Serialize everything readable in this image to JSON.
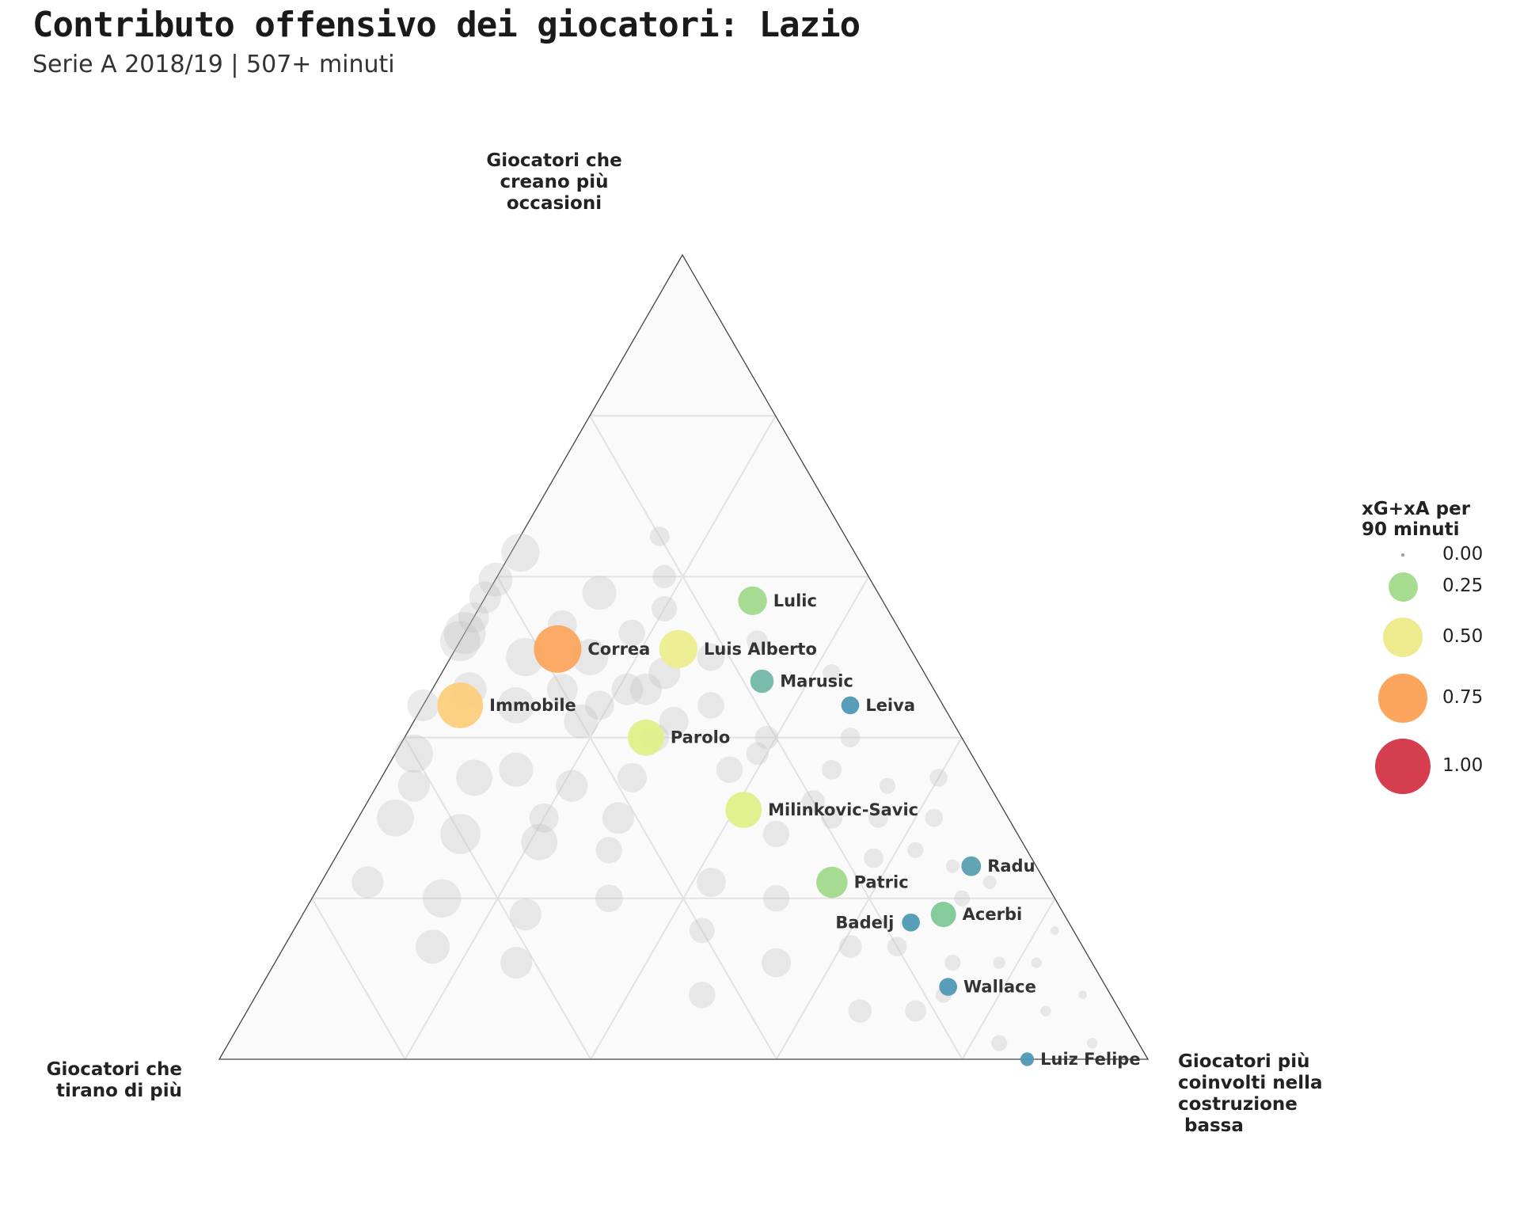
{
  "chart_data": {
    "type": "scatter",
    "subtype": "ternary",
    "title": "Contributo offensivo dei giocatori: Lazio",
    "subtitle": "Serie A 2018/19 | 507+ minuti",
    "axes": {
      "top": "Giocatori che creano più occasioni",
      "top_lines": [
        "Giocatori che",
        "creano più",
        "occasioni"
      ],
      "left": "Giocatori che tirano di più",
      "left_lines": [
        "Giocatori che",
        "tirano di più"
      ],
      "right": "Giocatori più coinvolti nella costruzione bassa",
      "right_lines": [
        "Giocatori più",
        "coinvolti nella",
        "costruzione",
        " bassa"
      ]
    },
    "component_order": [
      "tiro",
      "creazione",
      "costruzione"
    ],
    "size_variable": "xG+xA per 90 minuti",
    "legend": {
      "title_lines": [
        "xG+xA per",
        "90 minuti"
      ],
      "entries": [
        {
          "label": "0.00",
          "value": 0.0,
          "color": "#9aa0a6"
        },
        {
          "label": "0.25",
          "value": 0.25,
          "color": "#a6dc8f"
        },
        {
          "label": "0.50",
          "value": 0.5,
          "color": "#eeeb8e"
        },
        {
          "label": "0.75",
          "value": 0.75,
          "color": "#fca55f"
        },
        {
          "label": "1.00",
          "value": 1.0,
          "color": "#d53e4f"
        }
      ]
    },
    "highlighted": [
      {
        "name": "Lulic",
        "shooting": 0.14,
        "creating": 0.57,
        "buildup": 0.29,
        "xgxa": 0.24,
        "color": "#a3d98c"
      },
      {
        "name": "Luis Alberto",
        "shooting": 0.25,
        "creating": 0.51,
        "buildup": 0.24,
        "xgxa": 0.45,
        "color": "#eded8f"
      },
      {
        "name": "Correa",
        "shooting": 0.38,
        "creating": 0.51,
        "buildup": 0.11,
        "xgxa": 0.72,
        "color": "#fca65f"
      },
      {
        "name": "Marusic",
        "shooting": 0.18,
        "creating": 0.47,
        "buildup": 0.35,
        "xgxa": 0.15,
        "color": "#72b8a4"
      },
      {
        "name": "Leiva",
        "shooting": 0.1,
        "creating": 0.44,
        "buildup": 0.46,
        "xgxa": 0.08,
        "color": "#4f99b5"
      },
      {
        "name": "Immobile",
        "shooting": 0.52,
        "creating": 0.44,
        "buildup": 0.04,
        "xgxa": 0.66,
        "color": "#fdcf7c"
      },
      {
        "name": "Parolo",
        "shooting": 0.34,
        "creating": 0.4,
        "buildup": 0.26,
        "xgxa": 0.4,
        "color": "#dff08a"
      },
      {
        "name": "Milinkovic-Savic",
        "shooting": 0.28,
        "creating": 0.31,
        "buildup": 0.41,
        "xgxa": 0.4,
        "color": "#dff08a"
      },
      {
        "name": "Radu",
        "shooting": 0.07,
        "creating": 0.24,
        "buildup": 0.69,
        "xgxa": 0.1,
        "color": "#58a0b0"
      },
      {
        "name": "Patric",
        "shooting": 0.23,
        "creating": 0.22,
        "buildup": 0.55,
        "xgxa": 0.29,
        "color": "#a3d98c"
      },
      {
        "name": "Acerbi",
        "shooting": 0.13,
        "creating": 0.18,
        "buildup": 0.69,
        "xgxa": 0.18,
        "color": "#80c895"
      },
      {
        "name": "Badelj",
        "shooting": 0.17,
        "creating": 0.17,
        "buildup": 0.66,
        "xgxa": 0.08,
        "color": "#4f99b5"
      },
      {
        "name": "Wallace",
        "shooting": 0.17,
        "creating": 0.09,
        "buildup": 0.74,
        "xgxa": 0.08,
        "color": "#4f99b5"
      },
      {
        "name": "Luiz Felipe",
        "shooting": 0.13,
        "creating": 0.0,
        "buildup": 0.87,
        "xgxa": 0.04,
        "color": "#4f99b5"
      }
    ],
    "background_players": [
      {
        "shooting": 0.55,
        "creating": 0.62,
        "buildup": 0.0,
        "xgxa": 0.55
      },
      {
        "shooting": 0.44,
        "creating": 0.65,
        "buildup": 0.0,
        "xgxa": 0.35
      },
      {
        "shooting": 0.36,
        "creating": 0.63,
        "buildup": 0.01,
        "xgxa": 0.45
      },
      {
        "shooting": 0.43,
        "creating": 0.58,
        "buildup": 0.0,
        "xgxa": 0.3
      },
      {
        "shooting": 0.3,
        "creating": 0.58,
        "buildup": 0.12,
        "xgxa": 0.35
      },
      {
        "shooting": 0.22,
        "creating": 0.6,
        "buildup": 0.18,
        "xgxa": 0.15
      },
      {
        "shooting": 0.2,
        "creating": 0.65,
        "buildup": 0.15,
        "xgxa": 0.1
      },
      {
        "shooting": 0.48,
        "creating": 0.52,
        "buildup": 0.0,
        "xgxa": 0.5
      },
      {
        "shooting": 0.42,
        "creating": 0.5,
        "buildup": 0.08,
        "xgxa": 0.45
      },
      {
        "shooting": 0.35,
        "creating": 0.5,
        "buildup": 0.15,
        "xgxa": 0.4
      },
      {
        "shooting": 0.28,
        "creating": 0.48,
        "buildup": 0.24,
        "xgxa": 0.3
      },
      {
        "shooting": 0.22,
        "creating": 0.5,
        "buildup": 0.28,
        "xgxa": 0.22
      },
      {
        "shooting": 0.46,
        "creating": 0.44,
        "buildup": 0.1,
        "xgxa": 0.4
      },
      {
        "shooting": 0.4,
        "creating": 0.42,
        "buildup": 0.18,
        "xgxa": 0.35
      },
      {
        "shooting": 0.37,
        "creating": 0.44,
        "buildup": 0.19,
        "xgxa": 0.25
      },
      {
        "shooting": 0.33,
        "creating": 0.46,
        "buildup": 0.21,
        "xgxa": 0.3
      },
      {
        "shooting": 0.3,
        "creating": 0.42,
        "buildup": 0.28,
        "xgxa": 0.25
      },
      {
        "shooting": 0.25,
        "creating": 0.44,
        "buildup": 0.31,
        "xgxa": 0.2
      },
      {
        "shooting": 0.21,
        "creating": 0.4,
        "buildup": 0.39,
        "xgxa": 0.15
      },
      {
        "shooting": 0.6,
        "creating": 0.38,
        "buildup": 0.02,
        "xgxa": 0.45
      },
      {
        "shooting": 0.55,
        "creating": 0.35,
        "buildup": 0.1,
        "xgxa": 0.4
      },
      {
        "shooting": 0.5,
        "creating": 0.36,
        "buildup": 0.14,
        "xgxa": 0.35
      },
      {
        "shooting": 0.45,
        "creating": 0.34,
        "buildup": 0.21,
        "xgxa": 0.3
      },
      {
        "shooting": 0.38,
        "creating": 0.35,
        "buildup": 0.27,
        "xgxa": 0.25
      },
      {
        "shooting": 0.66,
        "creating": 0.3,
        "buildup": 0.04,
        "xgxa": 0.42
      },
      {
        "shooting": 0.6,
        "creating": 0.28,
        "buildup": 0.12,
        "xgxa": 0.5
      },
      {
        "shooting": 0.52,
        "creating": 0.27,
        "buildup": 0.21,
        "xgxa": 0.4
      },
      {
        "shooting": 0.45,
        "creating": 0.26,
        "buildup": 0.29,
        "xgxa": 0.2
      },
      {
        "shooting": 0.73,
        "creating": 0.22,
        "buildup": 0.05,
        "xgxa": 0.3
      },
      {
        "shooting": 0.66,
        "creating": 0.2,
        "buildup": 0.14,
        "xgxa": 0.45
      },
      {
        "shooting": 0.58,
        "creating": 0.18,
        "buildup": 0.24,
        "xgxa": 0.3
      },
      {
        "shooting": 0.62,
        "creating": 0.12,
        "buildup": 0.26,
        "xgxa": 0.3
      },
      {
        "shooting": 0.7,
        "creating": 0.14,
        "buildup": 0.16,
        "xgxa": 0.35
      },
      {
        "shooting": 0.36,
        "creating": 0.22,
        "buildup": 0.42,
        "xgxa": 0.25
      },
      {
        "shooting": 0.3,
        "creating": 0.2,
        "buildup": 0.5,
        "xgxa": 0.2
      },
      {
        "shooting": 0.34,
        "creating": 0.12,
        "buildup": 0.54,
        "xgxa": 0.25
      },
      {
        "shooting": 0.26,
        "creating": 0.28,
        "buildup": 0.46,
        "xgxa": 0.2
      },
      {
        "shooting": 0.2,
        "creating": 0.32,
        "buildup": 0.48,
        "xgxa": 0.15
      },
      {
        "shooting": 0.16,
        "creating": 0.36,
        "buildup": 0.48,
        "xgxa": 0.1
      },
      {
        "shooting": 0.19,
        "creating": 0.3,
        "buildup": 0.51,
        "xgxa": 0.12
      },
      {
        "shooting": 0.14,
        "creating": 0.3,
        "buildup": 0.56,
        "xgxa": 0.1
      },
      {
        "shooting": 0.12,
        "creating": 0.26,
        "buildup": 0.62,
        "xgxa": 0.06
      },
      {
        "shooting": 0.17,
        "creating": 0.25,
        "buildup": 0.58,
        "xgxa": 0.1
      },
      {
        "shooting": 0.08,
        "creating": 0.3,
        "buildup": 0.62,
        "xgxa": 0.08
      },
      {
        "shooting": 0.05,
        "creating": 0.35,
        "buildup": 0.6,
        "xgxa": 0.08
      },
      {
        "shooting": 0.06,
        "creating": 0.22,
        "buildup": 0.72,
        "xgxa": 0.04
      },
      {
        "shooting": 0.1,
        "creating": 0.2,
        "buildup": 0.7,
        "xgxa": 0.06
      },
      {
        "shooting": 0.2,
        "creating": 0.14,
        "buildup": 0.66,
        "xgxa": 0.1
      },
      {
        "shooting": 0.15,
        "creating": 0.12,
        "buildup": 0.73,
        "xgxa": 0.06
      },
      {
        "shooting": 0.1,
        "creating": 0.12,
        "buildup": 0.78,
        "xgxa": 0.03
      },
      {
        "shooting": 0.06,
        "creating": 0.12,
        "buildup": 0.82,
        "xgxa": 0.02
      },
      {
        "shooting": 0.22,
        "creating": 0.06,
        "buildup": 0.72,
        "xgxa": 0.12
      },
      {
        "shooting": 0.28,
        "creating": 0.06,
        "buildup": 0.66,
        "xgxa": 0.15
      },
      {
        "shooting": 0.15,
        "creating": 0.02,
        "buildup": 0.83,
        "xgxa": 0.06
      },
      {
        "shooting": 0.05,
        "creating": 0.02,
        "buildup": 0.93,
        "xgxa": 0.02
      },
      {
        "shooting": 0.03,
        "creating": 0.08,
        "buildup": 0.89,
        "xgxa": 0.01
      },
      {
        "shooting": 0.02,
        "creating": 0.16,
        "buildup": 0.82,
        "xgxa": 0.01
      },
      {
        "shooting": 0.12,
        "creating": 0.4,
        "buildup": 0.48,
        "xgxa": 0.1
      },
      {
        "shooting": 0.1,
        "creating": 0.48,
        "buildup": 0.42,
        "xgxa": 0.08
      },
      {
        "shooting": 0.16,
        "creating": 0.52,
        "buildup": 0.32,
        "xgxa": 0.12
      },
      {
        "shooting": 0.24,
        "creating": 0.56,
        "buildup": 0.2,
        "xgxa": 0.18
      },
      {
        "shooting": 0.29,
        "creating": 0.53,
        "buildup": 0.18,
        "xgxa": 0.2
      },
      {
        "shooting": 0.5,
        "creating": 0.46,
        "buildup": 0.04,
        "xgxa": 0.35
      },
      {
        "shooting": 0.4,
        "creating": 0.46,
        "buildup": 0.14,
        "xgxa": 0.28
      },
      {
        "shooting": 0.33,
        "creating": 0.4,
        "buildup": 0.27,
        "xgxa": 0.22
      },
      {
        "shooting": 0.27,
        "creating": 0.36,
        "buildup": 0.37,
        "xgxa": 0.2
      },
      {
        "shooting": 0.23,
        "creating": 0.38,
        "buildup": 0.39,
        "xgxa": 0.14
      },
      {
        "shooting": 0.42,
        "creating": 0.3,
        "buildup": 0.28,
        "xgxa": 0.3
      },
      {
        "shooting": 0.48,
        "creating": 0.2,
        "buildup": 0.32,
        "xgxa": 0.22
      },
      {
        "shooting": 0.4,
        "creating": 0.16,
        "buildup": 0.44,
        "xgxa": 0.18
      },
      {
        "shooting": 0.44,
        "creating": 0.08,
        "buildup": 0.48,
        "xgxa": 0.2
      },
      {
        "shooting": 0.25,
        "creating": 0.14,
        "buildup": 0.61,
        "xgxa": 0.14
      },
      {
        "shooting": 0.11,
        "creating": 0.34,
        "buildup": 0.55,
        "xgxa": 0.06
      },
      {
        "shooting": 0.09,
        "creating": 0.24,
        "buildup": 0.67,
        "xgxa": 0.04
      },
      {
        "shooting": 0.18,
        "creating": 0.08,
        "buildup": 0.74,
        "xgxa": 0.06
      },
      {
        "shooting": 0.08,
        "creating": 0.06,
        "buildup": 0.86,
        "xgxa": 0.02
      },
      {
        "shooting": 0.31,
        "creating": 0.46,
        "buildup": 0.23,
        "xgxa": 0.3
      },
      {
        "shooting": 0.36,
        "creating": 0.54,
        "buildup": 0.1,
        "xgxa": 0.25
      },
      {
        "shooting": 0.46,
        "creating": 0.56,
        "buildup": 0.0,
        "xgxa": 0.28
      },
      {
        "shooting": 0.56,
        "creating": 0.44,
        "buildup": 0.0,
        "xgxa": 0.3
      },
      {
        "shooting": 0.62,
        "creating": 0.34,
        "buildup": 0.04,
        "xgxa": 0.3
      },
      {
        "shooting": 0.5,
        "creating": 0.3,
        "buildup": 0.2,
        "xgxa": 0.25
      }
    ]
  }
}
